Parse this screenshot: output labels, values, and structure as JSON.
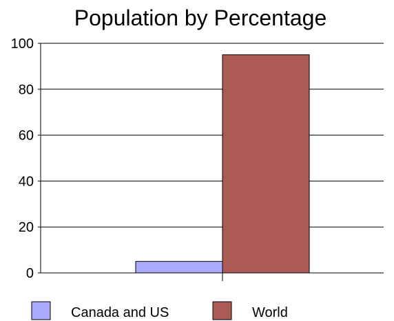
{
  "chart_data": {
    "type": "bar",
    "title": "Population by Percentage",
    "xlabel": "",
    "ylabel": "",
    "categories": [
      ""
    ],
    "series": [
      {
        "name": "Canada and US",
        "values": [
          5
        ],
        "color": "#aaaaff"
      },
      {
        "name": "World",
        "values": [
          95
        ],
        "color": "#ab5a56"
      }
    ],
    "ylim": [
      0,
      100
    ],
    "yticks": [
      0,
      20,
      40,
      60,
      80,
      100
    ],
    "grid": true,
    "legend_position": "bottom"
  }
}
